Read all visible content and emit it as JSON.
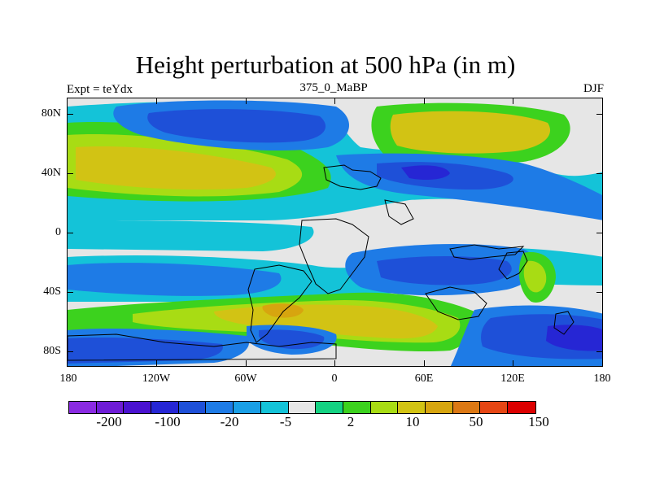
{
  "title": "Height perturbation at 500 hPa (in m)",
  "subtitle": {
    "left": "Expt = teYdx",
    "center": "375_0_MaBP",
    "right": "DJF"
  },
  "axes": {
    "lat_ticks": [
      "80N",
      "40N",
      "0",
      "40S",
      "80S"
    ],
    "lon_ticks": [
      "180",
      "120W",
      "60W",
      "0",
      "60E",
      "120E",
      "180"
    ]
  },
  "colorbar": {
    "colors": [
      "#8a2be2",
      "#6e1cd6",
      "#4a12d0",
      "#2626d4",
      "#1e50d8",
      "#1e7be6",
      "#1a9fe6",
      "#14c3d8",
      "#e6e6e6",
      "#14d282",
      "#3cd21e",
      "#a8dc14",
      "#d2c314",
      "#d7a50f",
      "#dc7814",
      "#e64614",
      "#dc0000"
    ],
    "labels": [
      "-200",
      "-100",
      "-20",
      "-5",
      "2",
      "10",
      "50",
      "150"
    ]
  }
}
